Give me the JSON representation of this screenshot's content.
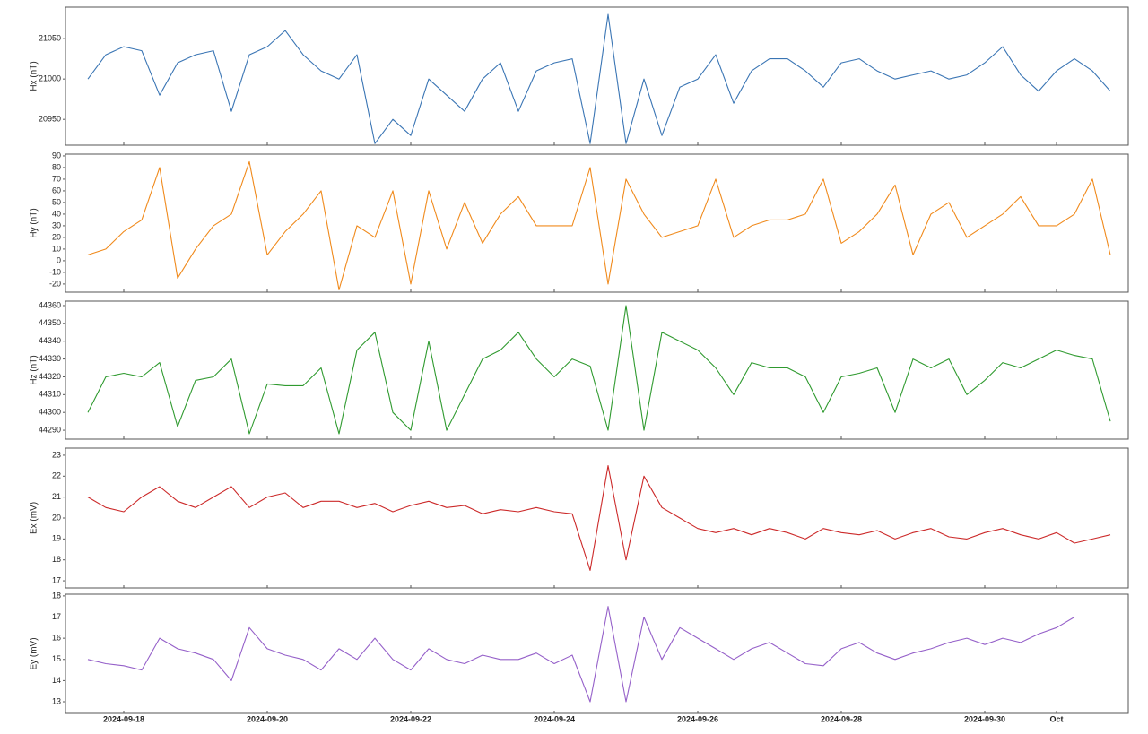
{
  "chart_data": [
    {
      "type": "line",
      "ylabel": "Hx (nT)",
      "color": "#3a75b4",
      "ylim": [
        20918,
        21089
      ],
      "yticks": [
        20950,
        21000,
        21050
      ],
      "values": [
        21000,
        21030,
        21040,
        21035,
        20980,
        21020,
        21030,
        21035,
        20960,
        21030,
        21040,
        21060,
        21030,
        21010,
        21000,
        21030,
        20920,
        20950,
        20930,
        21000,
        20980,
        20960,
        21000,
        21020,
        20960,
        21010,
        21020,
        21025,
        20920,
        21080,
        20920,
        21000,
        20930,
        20990,
        21000,
        21030,
        20970,
        21010,
        21025,
        21025,
        21010,
        20990,
        21020,
        21025,
        21010,
        21000,
        21005,
        21010,
        21000,
        21005,
        21020,
        21040,
        21005,
        20985,
        21010,
        21025,
        21010,
        20985
      ]
    },
    {
      "type": "line",
      "ylabel": "Hy (nT)",
      "color": "#f08a1c",
      "ylim": [
        -27,
        91.5
      ],
      "yticks": [
        -20,
        -10,
        0,
        10,
        20,
        30,
        40,
        50,
        60,
        70,
        80,
        90
      ],
      "values": [
        5,
        10,
        25,
        35,
        80,
        -15,
        10,
        30,
        40,
        85,
        5,
        25,
        40,
        60,
        -25,
        30,
        20,
        60,
        -20,
        60,
        10,
        50,
        15,
        40,
        55,
        30,
        30,
        30,
        80,
        -20,
        70,
        40,
        20,
        25,
        30,
        70,
        20,
        30,
        35,
        35,
        40,
        70,
        15,
        25,
        40,
        65,
        5,
        40,
        50,
        20,
        30,
        40,
        55,
        30,
        30,
        40,
        70,
        5
      ]
    },
    {
      "type": "line",
      "ylabel": "Hz (nT)",
      "color": "#2f9a2f",
      "ylim": [
        44285,
        44362.5
      ],
      "yticks": [
        44290,
        44300,
        44310,
        44320,
        44330,
        44340,
        44350,
        44360
      ],
      "values": [
        44300,
        44320,
        44322,
        44320,
        44328,
        44292,
        44318,
        44320,
        44330,
        44288,
        44316,
        44315,
        44315,
        44325,
        44288,
        44335,
        44345,
        44300,
        44290,
        44340,
        44290,
        44310,
        44330,
        44335,
        44345,
        44330,
        44320,
        44330,
        44326,
        44290,
        44360,
        44290,
        44345,
        44340,
        44335,
        44325,
        44310,
        44328,
        44325,
        44325,
        44320,
        44300,
        44320,
        44322,
        44325,
        44300,
        44330,
        44325,
        44330,
        44310,
        44318,
        44328,
        44325,
        44330,
        44335,
        44332,
        44330,
        44295
      ]
    },
    {
      "type": "line",
      "ylabel": "Ex (mV)",
      "color": "#cc2a2a",
      "ylim": [
        16.66,
        23.34
      ],
      "yticks": [
        17,
        18,
        19,
        20,
        21,
        22,
        23
      ],
      "values": [
        21,
        20.5,
        20.3,
        21,
        21.5,
        20.8,
        20.5,
        21,
        21.5,
        20.5,
        21,
        21.2,
        20.5,
        20.8,
        20.8,
        20.5,
        20.7,
        20.3,
        20.6,
        20.8,
        20.5,
        20.6,
        20.2,
        20.4,
        20.3,
        20.5,
        20.3,
        20.2,
        17.5,
        22.5,
        18,
        22,
        20.5,
        20,
        19.5,
        19.3,
        19.5,
        19.2,
        19.5,
        19.3,
        19.0,
        19.5,
        19.3,
        19.2,
        19.4,
        19.0,
        19.3,
        19.5,
        19.1,
        19.0,
        19.3,
        19.5,
        19.2,
        19.0,
        19.3,
        18.8,
        19.0,
        19.2
      ]
    },
    {
      "type": "line",
      "ylabel": "Ey (mV)",
      "color": "#9560c9",
      "ylim": [
        12.45,
        18.08
      ],
      "yticks": [
        13,
        14,
        15,
        16,
        17,
        18
      ],
      "values": [
        15,
        14.8,
        14.7,
        14.5,
        16,
        15.5,
        15.3,
        15,
        14,
        16.5,
        15.5,
        15.2,
        15,
        14.5,
        15.5,
        15,
        16,
        15,
        14.5,
        15.5,
        15,
        14.8,
        15.2,
        15,
        15,
        15.3,
        14.8,
        15.2,
        13,
        17.5,
        13,
        17,
        15,
        16.5,
        16,
        15.5,
        15,
        15.5,
        15.8,
        15.3,
        14.8,
        14.7,
        15.5,
        15.8,
        15.3,
        15,
        15.3,
        15.5,
        15.8,
        16,
        15.7,
        16,
        15.8,
        16.2,
        16.5,
        17,
        null,
        null
      ],
      "xlim": [
        "2024-09-17T04:30",
        "2024-10-02T00:00"
      ],
      "xticks": [
        "2024-09-18",
        "2024-09-20",
        "2024-09-22",
        "2024-09-24",
        "2024-09-26",
        "2024-09-28",
        "2024-09-30",
        {
          "value": "2024-10-01",
          "label": "Oct"
        }
      ],
      "x": [
        "2024-09-17T12:00",
        "2024-09-17T18:00",
        "2024-09-18T00:00",
        "2024-09-18T06:00",
        "2024-09-18T12:00",
        "2024-09-18T18:00",
        "2024-09-19T00:00",
        "2024-09-19T06:00",
        "2024-09-19T12:00",
        "2024-09-19T18:00",
        "2024-09-20T00:00",
        "2024-09-20T06:00",
        "2024-09-20T12:00",
        "2024-09-20T18:00",
        "2024-09-21T00:00",
        "2024-09-21T06:00",
        "2024-09-21T12:00",
        "2024-09-21T18:00",
        "2024-09-22T00:00",
        "2024-09-22T06:00",
        "2024-09-22T12:00",
        "2024-09-22T18:00",
        "2024-09-23T00:00",
        "2024-09-23T06:00",
        "2024-09-23T12:00",
        "2024-09-23T18:00",
        "2024-09-24T00:00",
        "2024-09-24T06:00",
        "2024-09-24T12:00",
        "2024-09-24T18:00",
        "2024-09-25T00:00",
        "2024-09-25T06:00",
        "2024-09-25T12:00",
        "2024-09-25T18:00",
        "2024-09-26T00:00",
        "2024-09-26T06:00",
        "2024-09-26T12:00",
        "2024-09-26T18:00",
        "2024-09-27T00:00",
        "2024-09-27T06:00",
        "2024-09-27T12:00",
        "2024-09-27T18:00",
        "2024-09-28T00:00",
        "2024-09-28T06:00",
        "2024-09-28T12:00",
        "2024-09-28T18:00",
        "2024-09-29T00:00",
        "2024-09-29T06:00",
        "2024-09-29T12:00",
        "2024-09-29T18:00",
        "2024-09-30T00:00",
        "2024-09-30T06:00",
        "2024-09-30T12:00",
        "2024-09-30T18:00",
        "2024-10-01T00:00",
        "2024-10-01T06:00",
        "2024-10-01T12:00",
        "2024-10-01T18:00"
      ]
    }
  ]
}
